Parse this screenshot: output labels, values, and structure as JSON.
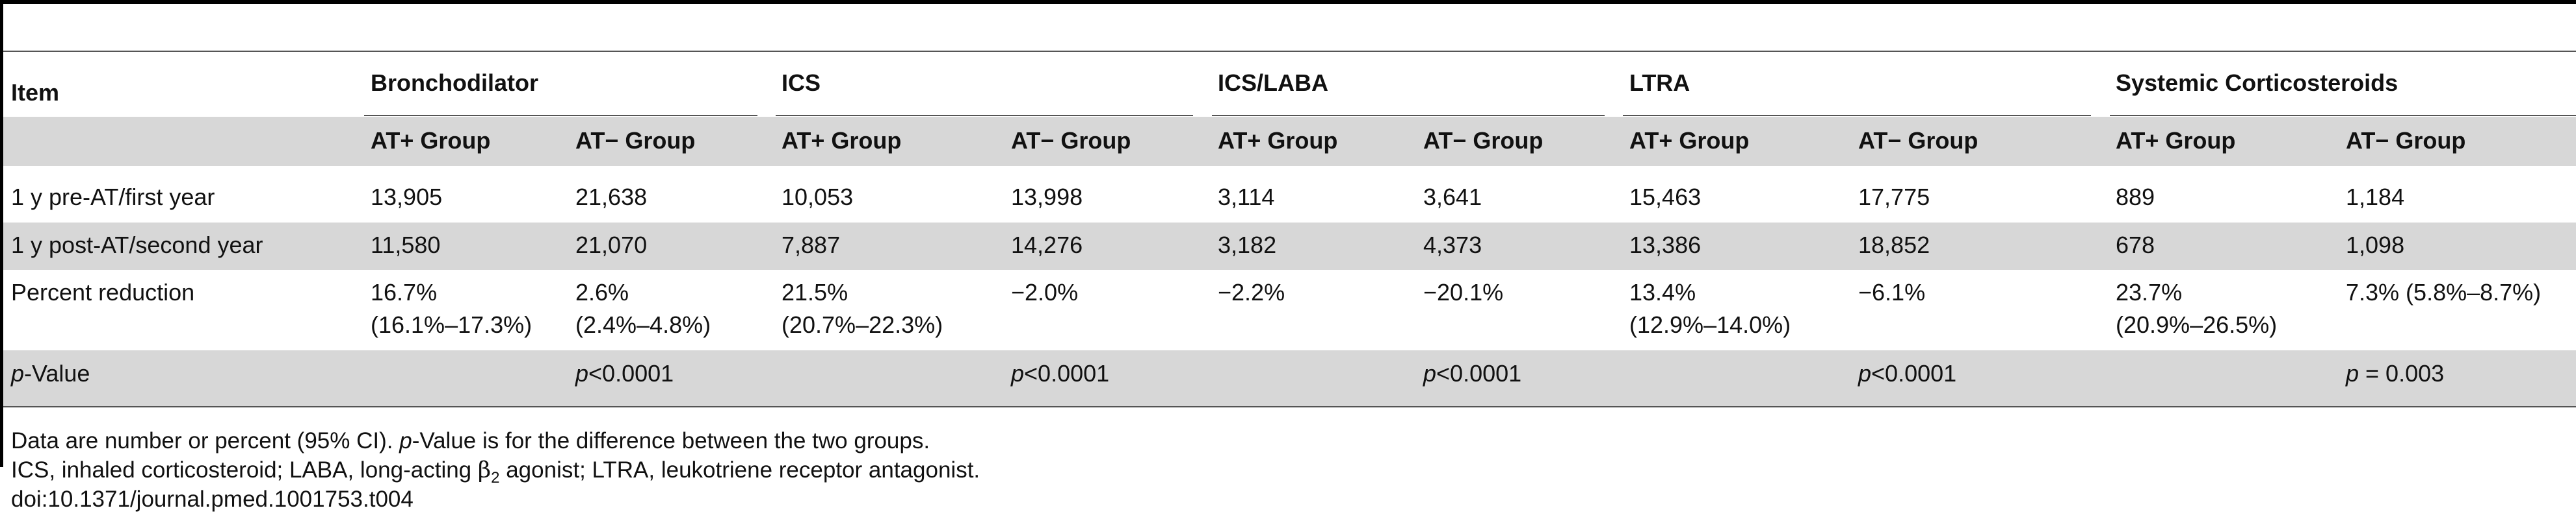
{
  "table": {
    "item_header": "Item",
    "groups": [
      "Bronchodilator",
      "ICS",
      "ICS/LABA",
      "LTRA",
      "Systemic Corticosteroids"
    ],
    "subheaders": [
      "AT+ Group",
      "AT− Group",
      "AT+ Group",
      "AT− Group",
      "AT+ Group",
      "AT− Group",
      "AT+ Group",
      "AT− Group",
      "AT+ Group",
      "AT− Group"
    ],
    "rows": [
      {
        "label": "1 y pre-AT/first year",
        "values": [
          "13,905",
          "21,638",
          "10,053",
          "13,998",
          "3,114",
          "3,641",
          "15,463",
          "17,775",
          "889",
          "1,184"
        ]
      },
      {
        "label": "1 y post-AT/second year",
        "values": [
          "11,580",
          "21,070",
          "7,887",
          "14,276",
          "3,182",
          "4,373",
          "13,386",
          "18,852",
          "678",
          "1,098"
        ]
      }
    ],
    "percent_row": {
      "label": "Percent reduction",
      "values": [
        [
          "16.7%",
          "(16.1%–17.3%)"
        ],
        [
          "2.6%",
          "(2.4%–4.8%)"
        ],
        [
          "21.5%",
          "(20.7%–22.3%)"
        ],
        [
          "−2.0%",
          ""
        ],
        [
          "−2.2%",
          ""
        ],
        [
          "−20.1%",
          ""
        ],
        [
          "13.4%",
          "(12.9%–14.0%)"
        ],
        [
          "−6.1%",
          ""
        ],
        [
          "23.7%",
          "(20.9%–26.5%)"
        ],
        [
          "7.3% (5.8%–8.7%)",
          ""
        ]
      ]
    },
    "pvalue_row": {
      "label_italic": "p",
      "label_rest": "-Value",
      "values": [
        {
          "p": "p",
          "rest": "<0.0001"
        },
        {
          "p": "p",
          "rest": "<0.0001"
        },
        {
          "p": "p",
          "rest": "<0.0001"
        },
        {
          "p": "p",
          "rest": "<0.0001"
        },
        {
          "p": "p",
          "rest": " = 0.003"
        }
      ]
    }
  },
  "footnotes": {
    "line1_before": "Data are number or percent (95% CI). ",
    "line1_italic": "p",
    "line1_after": "-Value is for the difference between the two groups.",
    "line2_before": "ICS, inhaled corticosteroid; LABA, long-acting ",
    "line2_symbol": "β",
    "line2_sub": "2",
    "line2_after": " agonist; LTRA, leukotriene receptor antagonist.",
    "line3": "doi:10.1371/journal.pmed.1001753.t004"
  }
}
